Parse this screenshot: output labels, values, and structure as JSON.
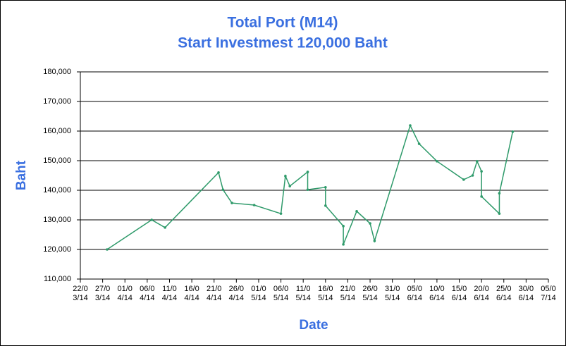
{
  "chart_data": {
    "type": "line",
    "title": "Total Port (M14)",
    "subtitle": "Start Investmest 120,000 Baht",
    "x_label": "Date",
    "y_label": "Baht",
    "grid": true,
    "series": [
      {
        "name": "Total Port",
        "color": "#2e9a6a",
        "x": [
          "28/03/14",
          "07/04/14",
          "10/04/14",
          "22/04/14",
          "23/04/14",
          "25/04/14",
          "30/04/14",
          "06/05/14",
          "07/05/14",
          "08/05/14",
          "12/05/14",
          "12/05/14",
          "16/05/14",
          "16/05/14",
          "20/05/14",
          "20/05/14",
          "23/05/14",
          "26/05/14",
          "27/05/14",
          "04/06/14",
          "06/06/14",
          "10/06/14",
          "16/06/14",
          "18/06/14",
          "19/06/14",
          "20/06/14",
          "20/06/14",
          "24/06/14",
          "24/06/14",
          "27/06/14"
        ],
        "values": [
          120000,
          130000,
          127400,
          146000,
          140200,
          135700,
          135000,
          132100,
          144800,
          141400,
          146200,
          140200,
          141000,
          134800,
          127900,
          121700,
          132900,
          128800,
          122900,
          161900,
          155700,
          149800,
          143600,
          145000,
          149800,
          146400,
          137900,
          132100,
          139000,
          159800
        ]
      }
    ],
    "xlim": [
      "22/03/14",
      "05/07/14"
    ],
    "xticks": [
      "22/03/14",
      "27/03/14",
      "01/04/14",
      "06/04/14",
      "11/04/14",
      "16/04/14",
      "21/04/14",
      "26/04/14",
      "01/05/14",
      "06/05/14",
      "11/05/14",
      "16/05/14",
      "21/05/14",
      "26/05/14",
      "31/05/14",
      "05/06/14",
      "10/06/14",
      "15/06/14",
      "20/06/14",
      "25/06/14",
      "30/06/14",
      "05/07/14"
    ],
    "ylim": [
      110000,
      180000
    ],
    "yticks": [
      {
        "value": 110000,
        "label": "110,000"
      },
      {
        "value": 120000,
        "label": "120,000"
      },
      {
        "value": 130000,
        "label": "130,000"
      },
      {
        "value": 140000,
        "label": "140,000"
      },
      {
        "value": 150000,
        "label": "150,000"
      },
      {
        "value": 160000,
        "label": "160,000"
      },
      {
        "value": 170000,
        "label": "170,000"
      },
      {
        "value": 180000,
        "label": "180,000"
      }
    ]
  }
}
